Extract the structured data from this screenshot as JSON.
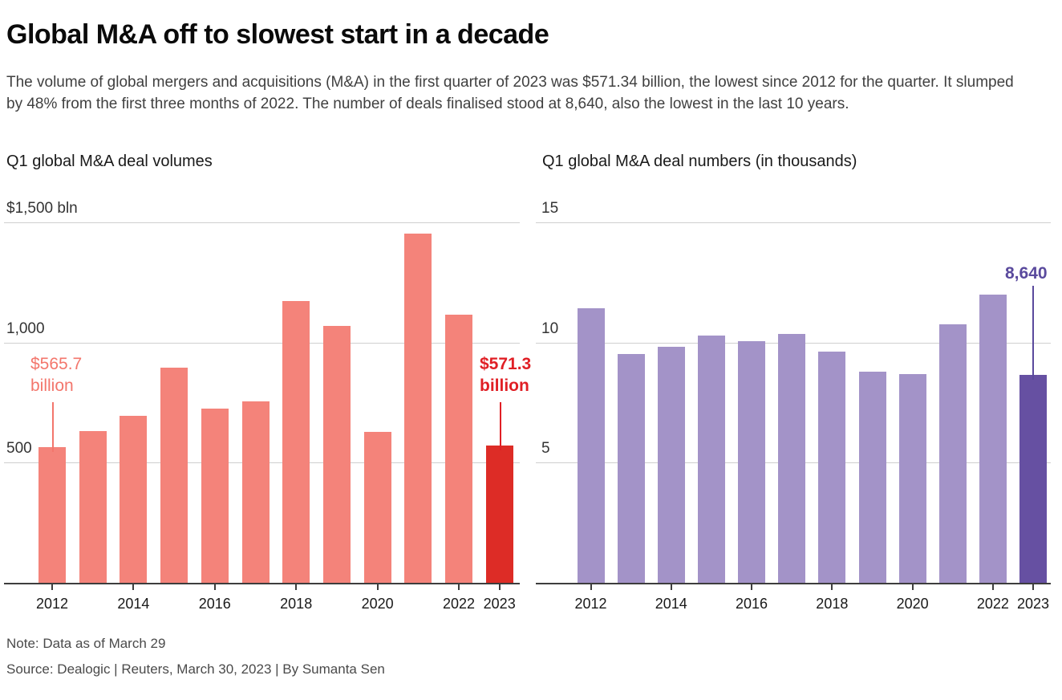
{
  "header": {
    "title": "Global M&A off to slowest start in a decade",
    "subtitle": "The volume of global mergers and acquisitions (M&A) in the first quarter of 2023 was $571.34 billion, the lowest since 2012 for the quarter. It slumped by 48% from the first three months of 2022. The number of deals finalised stood at 8,640, also the lowest in the last 10 years."
  },
  "footer": {
    "note": "Note: Data as of March 29",
    "source": "Source: Dealogic | Reuters, March 30, 2023 | By Sumanta Sen"
  },
  "colors": {
    "volume_bar": "#f4837a",
    "volume_highlight": "#dd2c26",
    "deals_bar": "#a393c8",
    "deals_highlight": "#6650a2",
    "annotation_pink": "#f3766c",
    "annotation_red": "#e01f25",
    "annotation_purple": "#5a4a9d",
    "gridline": "#cfcfcf",
    "axis": "#3d3d3d"
  },
  "chart_data": [
    {
      "type": "bar",
      "title": "Q1 global M&A deal volumes",
      "unit": "$ billion",
      "categories": [
        2012,
        2013,
        2014,
        2015,
        2016,
        2017,
        2018,
        2019,
        2020,
        2021,
        2022,
        2023
      ],
      "values": [
        565.7,
        633,
        694,
        894,
        726,
        754,
        1174,
        1070,
        628,
        1453,
        1117,
        571.3
      ],
      "ylim": [
        0,
        1500
      ],
      "yticks": [
        {
          "value": 1500,
          "label": "$1,500 bln"
        },
        {
          "value": 1000,
          "label": "1,000"
        },
        {
          "value": 500,
          "label": "500"
        }
      ],
      "xtick_labels": [
        "2012",
        "2014",
        "2016",
        "2018",
        "2020",
        "2022",
        "2023"
      ],
      "grid": true,
      "legend": false,
      "highlight_index": 11,
      "annotations": [
        {
          "lines": [
            "$565.7",
            "billion"
          ],
          "target_year": 2012,
          "value": 565.7,
          "bold": false,
          "color_key": "annotation_pink"
        },
        {
          "lines": [
            "$571.3",
            "billion"
          ],
          "target_year": 2023,
          "value": 571.3,
          "bold": true,
          "color_key": "annotation_red"
        }
      ]
    },
    {
      "type": "bar",
      "title": "Q1 global M&A deal numbers (in thousands)",
      "unit": "thousand deals",
      "categories": [
        2012,
        2013,
        2014,
        2015,
        2016,
        2017,
        2018,
        2019,
        2020,
        2021,
        2022,
        2023
      ],
      "values": [
        11.43,
        9.52,
        9.83,
        10.3,
        10.05,
        10.36,
        9.63,
        8.78,
        8.7,
        10.77,
        12.0,
        8.64
      ],
      "ylim": [
        0,
        15
      ],
      "yticks": [
        {
          "value": 15,
          "label": "15"
        },
        {
          "value": 10,
          "label": "10"
        },
        {
          "value": 5,
          "label": "5"
        }
      ],
      "xtick_labels": [
        "2012",
        "2014",
        "2016",
        "2018",
        "2020",
        "2022",
        "2023"
      ],
      "grid": true,
      "legend": false,
      "highlight_index": 11,
      "annotations": [
        {
          "lines": [
            "8,640"
          ],
          "target_year": 2023,
          "value": 8.64,
          "bold": true,
          "color_key": "annotation_purple"
        }
      ]
    }
  ]
}
